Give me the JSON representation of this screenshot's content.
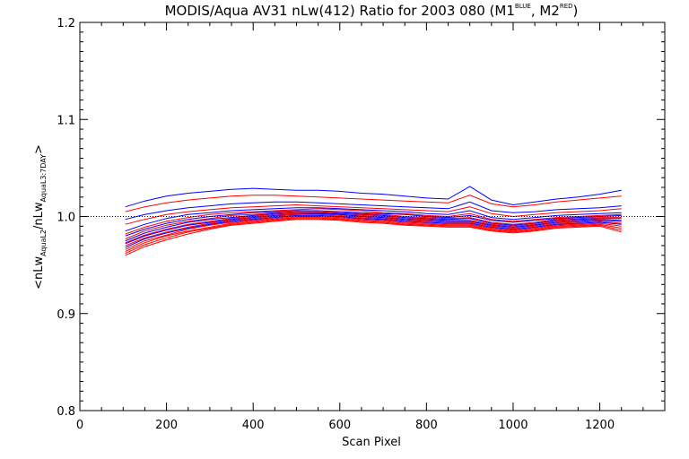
{
  "chart_data": {
    "type": "line",
    "title": {
      "main": "MODIS/Aqua AV31 nLw(412) Ratio for 2003 080 (M1",
      "sup1": "BLUE",
      "mid": ", M2",
      "sup2": "RED",
      "end": ")"
    },
    "xlabel": "Scan Pixel",
    "ylabel": {
      "open": "<nLw",
      "sub1": "AquaL2",
      "mid": "/nLw",
      "sub2": "AquaL3:7DAY",
      "close": ">"
    },
    "xlim": [
      0,
      1350
    ],
    "ylim": [
      0.8,
      1.2
    ],
    "xticks": [
      0,
      200,
      400,
      600,
      800,
      1000,
      1200
    ],
    "xtick_labels": [
      "0",
      "200",
      "400",
      "600",
      "800",
      "1000",
      "1200"
    ],
    "yticks": [
      0.8,
      0.9,
      1.0,
      1.1,
      1.2
    ],
    "ytick_labels": [
      "0.8",
      "0.9",
      "1.0",
      "1.1",
      "1.2"
    ],
    "reference_line": {
      "y": 1.0,
      "style": "dotted"
    },
    "x": [
      105,
      150,
      200,
      250,
      300,
      350,
      400,
      450,
      500,
      550,
      600,
      650,
      700,
      750,
      800,
      850,
      900,
      950,
      1000,
      1050,
      1100,
      1150,
      1200,
      1250
    ],
    "series": [
      {
        "color": "#0000ff",
        "values": [
          1.01,
          1.016,
          1.021,
          1.024,
          1.026,
          1.028,
          1.029,
          1.028,
          1.027,
          1.027,
          1.026,
          1.024,
          1.023,
          1.021,
          1.019,
          1.018,
          1.031,
          1.017,
          1.012,
          1.015,
          1.018,
          1.02,
          1.023,
          1.027
        ]
      },
      {
        "color": "#ff0000",
        "values": [
          1.005,
          1.01,
          1.014,
          1.017,
          1.019,
          1.021,
          1.022,
          1.022,
          1.021,
          1.02,
          1.019,
          1.018,
          1.017,
          1.016,
          1.015,
          1.014,
          1.022,
          1.013,
          1.01,
          1.012,
          1.015,
          1.017,
          1.019,
          1.021
        ]
      },
      {
        "color": "#0000ff",
        "values": [
          0.997,
          1.002,
          1.006,
          1.009,
          1.011,
          1.013,
          1.014,
          1.015,
          1.015,
          1.014,
          1.013,
          1.012,
          1.011,
          1.01,
          1.009,
          1.008,
          1.015,
          1.006,
          1.004,
          1.005,
          1.007,
          1.008,
          1.009,
          1.011
        ]
      },
      {
        "color": "#ff0000",
        "values": [
          0.992,
          0.997,
          1.002,
          1.005,
          1.007,
          1.009,
          1.01,
          1.011,
          1.012,
          1.011,
          1.01,
          1.009,
          1.008,
          1.007,
          1.006,
          1.005,
          1.01,
          1.003,
          1.0,
          1.002,
          1.004,
          1.005,
          1.006,
          1.008
        ]
      },
      {
        "color": "#0000ff",
        "values": [
          0.985,
          0.992,
          0.998,
          1.002,
          1.004,
          1.006,
          1.007,
          1.008,
          1.009,
          1.009,
          1.008,
          1.007,
          1.006,
          1.005,
          1.003,
          1.002,
          1.006,
          0.999,
          0.997,
          0.999,
          1.001,
          1.002,
          1.003,
          1.004
        ]
      },
      {
        "color": "#ff0000",
        "values": [
          0.982,
          0.989,
          0.995,
          0.999,
          1.002,
          1.004,
          1.005,
          1.006,
          1.007,
          1.008,
          1.007,
          1.006,
          1.004,
          1.003,
          1.001,
          1.0,
          1.003,
          0.997,
          0.995,
          0.997,
          0.999,
          1.0,
          1.001,
          1.002
        ]
      },
      {
        "color": "#0000ff",
        "values": [
          0.98,
          0.987,
          0.993,
          0.997,
          1.0,
          1.002,
          1.004,
          1.005,
          1.006,
          1.006,
          1.005,
          1.004,
          1.003,
          1.002,
          1.0,
          0.999,
          1.001,
          0.996,
          0.994,
          0.996,
          0.998,
          0.999,
          1.0,
          1.001
        ]
      },
      {
        "color": "#ff0000",
        "values": [
          0.977,
          0.985,
          0.991,
          0.995,
          0.998,
          1.001,
          1.002,
          1.004,
          1.005,
          1.005,
          1.004,
          1.003,
          1.002,
          1.0,
          0.999,
          0.998,
          0.999,
          0.994,
          0.992,
          0.994,
          0.997,
          0.998,
          0.999,
          0.999
        ]
      },
      {
        "color": "#0000ff",
        "values": [
          0.975,
          0.983,
          0.989,
          0.994,
          0.997,
          0.999,
          1.001,
          1.003,
          1.004,
          1.004,
          1.003,
          1.002,
          1.001,
          0.999,
          0.998,
          0.997,
          0.998,
          0.993,
          0.991,
          0.993,
          0.996,
          0.997,
          0.998,
          0.998
        ]
      },
      {
        "color": "#ff0000",
        "values": [
          0.973,
          0.981,
          0.987,
          0.992,
          0.995,
          0.998,
          1.0,
          1.002,
          1.003,
          1.003,
          1.002,
          1.001,
          1.0,
          0.998,
          0.997,
          0.996,
          0.996,
          0.992,
          0.99,
          0.992,
          0.995,
          0.996,
          0.997,
          0.996
        ]
      },
      {
        "color": "#0000ff",
        "values": [
          0.972,
          0.98,
          0.986,
          0.991,
          0.994,
          0.997,
          0.999,
          1.001,
          1.002,
          1.003,
          1.002,
          1.0,
          0.999,
          0.997,
          0.996,
          0.995,
          0.995,
          0.991,
          0.989,
          0.991,
          0.994,
          0.995,
          0.996,
          0.995
        ]
      },
      {
        "color": "#ff0000",
        "values": [
          0.97,
          0.978,
          0.984,
          0.989,
          0.993,
          0.996,
          0.998,
          1.0,
          1.002,
          1.002,
          1.001,
          0.999,
          0.998,
          0.996,
          0.995,
          0.994,
          0.994,
          0.99,
          0.988,
          0.99,
          0.993,
          0.994,
          0.995,
          0.993
        ]
      },
      {
        "color": "#0000ff",
        "values": [
          0.968,
          0.977,
          0.983,
          0.988,
          0.992,
          0.995,
          0.997,
          0.999,
          1.001,
          1.001,
          1.0,
          0.998,
          0.997,
          0.995,
          0.994,
          0.993,
          0.993,
          0.989,
          0.987,
          0.989,
          0.992,
          0.993,
          0.994,
          0.992
        ]
      },
      {
        "color": "#ff0000",
        "values": [
          0.966,
          0.975,
          0.981,
          0.987,
          0.991,
          0.994,
          0.996,
          0.998,
          1.0,
          1.0,
          0.999,
          0.997,
          0.996,
          0.994,
          0.993,
          0.992,
          0.992,
          0.988,
          0.986,
          0.988,
          0.991,
          0.992,
          0.993,
          0.99
        ]
      },
      {
        "color": "#ff0000",
        "values": [
          0.964,
          0.973,
          0.98,
          0.985,
          0.989,
          0.993,
          0.995,
          0.997,
          0.999,
          0.999,
          0.998,
          0.996,
          0.995,
          0.993,
          0.992,
          0.991,
          0.991,
          0.987,
          0.985,
          0.987,
          0.99,
          0.991,
          0.992,
          0.988
        ]
      },
      {
        "color": "#ff0000",
        "values": [
          0.962,
          0.971,
          0.978,
          0.984,
          0.988,
          0.992,
          0.994,
          0.996,
          0.998,
          0.998,
          0.997,
          0.995,
          0.994,
          0.992,
          0.991,
          0.99,
          0.99,
          0.986,
          0.984,
          0.986,
          0.989,
          0.99,
          0.991,
          0.986
        ]
      },
      {
        "color": "#ff0000",
        "values": [
          0.96,
          0.969,
          0.976,
          0.982,
          0.987,
          0.991,
          0.993,
          0.995,
          0.997,
          0.997,
          0.996,
          0.994,
          0.993,
          0.991,
          0.99,
          0.989,
          0.989,
          0.985,
          0.983,
          0.985,
          0.988,
          0.989,
          0.99,
          0.984
        ]
      }
    ]
  }
}
